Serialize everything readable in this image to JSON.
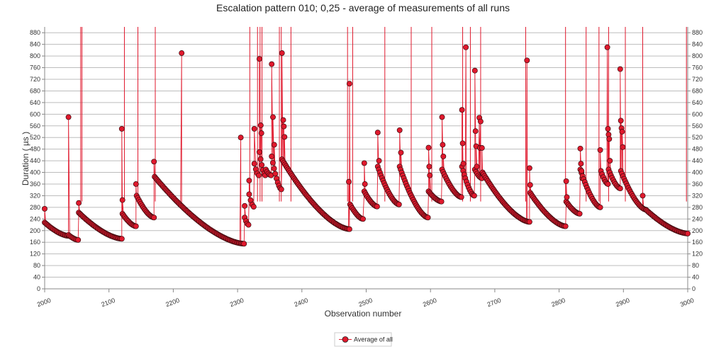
{
  "chart_data": {
    "type": "scatter",
    "title": "Escalation pattern 010; 0,25 - average of measurements of all runs",
    "xlabel": "Observation number",
    "ylabel": "Duration ( µs )",
    "xlim": [
      2000,
      3000
    ],
    "ylim": [
      0,
      900
    ],
    "x_ticks": [
      "2000",
      "2100",
      "2200",
      "2300",
      "2400",
      "2500",
      "2600",
      "2700",
      "2800",
      "2900",
      "3000"
    ],
    "y_ticks": [
      "0",
      "40",
      "80",
      "120",
      "160",
      "200",
      "240",
      "280",
      "320",
      "360",
      "400",
      "440",
      "480",
      "520",
      "560",
      "600",
      "640",
      "680",
      "720",
      "760",
      "800",
      "840",
      "880"
    ],
    "grid": true,
    "legend_position": "bottom-center",
    "series": [
      {
        "name": "Average of all",
        "color": "#e0192d",
        "marker": "circle",
        "segments": [
          {
            "x0": 2000,
            "x1": 2037,
            "y0": 228,
            "y1": 182
          },
          {
            "x0": 2037,
            "x1": 2052,
            "y0": 185,
            "y1": 168
          },
          {
            "x0": 2053,
            "x1": 2120,
            "y0": 262,
            "y1": 172
          },
          {
            "x0": 2121,
            "x1": 2142,
            "y0": 258,
            "y1": 215
          },
          {
            "x0": 2143,
            "x1": 2170,
            "y0": 320,
            "y1": 245
          },
          {
            "x0": 2171,
            "x1": 2310,
            "y0": 385,
            "y1": 155
          },
          {
            "x0": 2311,
            "x1": 2317,
            "y0": 245,
            "y1": 220
          },
          {
            "x0": 2318,
            "x1": 2325,
            "y0": 325,
            "y1": 282
          },
          {
            "x0": 2326,
            "x1": 2333,
            "y0": 430,
            "y1": 390
          },
          {
            "x0": 2334,
            "x1": 2343,
            "y0": 470,
            "y1": 390
          },
          {
            "x0": 2344,
            "x1": 2352,
            "y0": 410,
            "y1": 390
          },
          {
            "x0": 2353,
            "x1": 2368,
            "y0": 455,
            "y1": 342
          },
          {
            "x0": 2369,
            "x1": 2474,
            "y0": 445,
            "y1": 205
          },
          {
            "x0": 2475,
            "x1": 2495,
            "y0": 290,
            "y1": 240
          },
          {
            "x0": 2497,
            "x1": 2517,
            "y0": 335,
            "y1": 283
          },
          {
            "x0": 2518,
            "x1": 2551,
            "y0": 420,
            "y1": 290
          },
          {
            "x0": 2552,
            "x1": 2596,
            "y0": 420,
            "y1": 245
          },
          {
            "x0": 2597,
            "x1": 2617,
            "y0": 335,
            "y1": 300
          },
          {
            "x0": 2618,
            "x1": 2648,
            "y0": 410,
            "y1": 315
          },
          {
            "x0": 2649,
            "x1": 2668,
            "y0": 420,
            "y1": 320
          },
          {
            "x0": 2669,
            "x1": 2680,
            "y0": 410,
            "y1": 380
          },
          {
            "x0": 2681,
            "x1": 2754,
            "y0": 400,
            "y1": 230
          },
          {
            "x0": 2755,
            "x1": 2810,
            "y0": 330,
            "y1": 215
          },
          {
            "x0": 2811,
            "x1": 2832,
            "y0": 300,
            "y1": 258
          },
          {
            "x0": 2833,
            "x1": 2864,
            "y0": 410,
            "y1": 280
          },
          {
            "x0": 2865,
            "x1": 2876,
            "y0": 405,
            "y1": 360
          },
          {
            "x0": 2877,
            "x1": 2895,
            "y0": 410,
            "y1": 345
          },
          {
            "x0": 2896,
            "x1": 2935,
            "y0": 405,
            "y1": 272
          },
          {
            "x0": 2936,
            "x1": 3000,
            "y0": 270,
            "y1": 190
          }
        ],
        "peaks": [
          {
            "x": 2000,
            "y": 275
          },
          {
            "x": 2037,
            "y": 590
          },
          {
            "x": 2053,
            "y": 295
          },
          {
            "x": 2120,
            "y": 550
          },
          {
            "x": 2121,
            "y": 305
          },
          {
            "x": 2142,
            "y": 360
          },
          {
            "x": 2170,
            "y": 437
          },
          {
            "x": 2213,
            "y": 810
          },
          {
            "x": 2305,
            "y": 520
          },
          {
            "x": 2311,
            "y": 285
          },
          {
            "x": 2318,
            "y": 372
          },
          {
            "x": 2326,
            "y": 550
          },
          {
            "x": 2334,
            "y": 790
          },
          {
            "x": 2336,
            "y": 562
          },
          {
            "x": 2337,
            "y": 535
          },
          {
            "x": 2353,
            "y": 772
          },
          {
            "x": 2355,
            "y": 590
          },
          {
            "x": 2357,
            "y": 495
          },
          {
            "x": 2369,
            "y": 810
          },
          {
            "x": 2371,
            "y": 580
          },
          {
            "x": 2372,
            "y": 558
          },
          {
            "x": 2373,
            "y": 522
          },
          {
            "x": 2474,
            "y": 705
          },
          {
            "x": 2473,
            "y": 368
          },
          {
            "x": 2497,
            "y": 432
          },
          {
            "x": 2498,
            "y": 360
          },
          {
            "x": 2518,
            "y": 537
          },
          {
            "x": 2520,
            "y": 440
          },
          {
            "x": 2552,
            "y": 545
          },
          {
            "x": 2554,
            "y": 468
          },
          {
            "x": 2597,
            "y": 485
          },
          {
            "x": 2598,
            "y": 420
          },
          {
            "x": 2599,
            "y": 390
          },
          {
            "x": 2618,
            "y": 590
          },
          {
            "x": 2619,
            "y": 495
          },
          {
            "x": 2620,
            "y": 455
          },
          {
            "x": 2649,
            "y": 615
          },
          {
            "x": 2650,
            "y": 500
          },
          {
            "x": 2651,
            "y": 430
          },
          {
            "x": 2655,
            "y": 830
          },
          {
            "x": 2669,
            "y": 750
          },
          {
            "x": 2670,
            "y": 542
          },
          {
            "x": 2671,
            "y": 490
          },
          {
            "x": 2672,
            "y": 420
          },
          {
            "x": 2676,
            "y": 588
          },
          {
            "x": 2678,
            "y": 575
          },
          {
            "x": 2677,
            "y": 484
          },
          {
            "x": 2680,
            "y": 484
          },
          {
            "x": 2750,
            "y": 785
          },
          {
            "x": 2754,
            "y": 415
          },
          {
            "x": 2755,
            "y": 357
          },
          {
            "x": 2811,
            "y": 370
          },
          {
            "x": 2812,
            "y": 315
          },
          {
            "x": 2833,
            "y": 482
          },
          {
            "x": 2834,
            "y": 430
          },
          {
            "x": 2835,
            "y": 405
          },
          {
            "x": 2836,
            "y": 380
          },
          {
            "x": 2864,
            "y": 477
          },
          {
            "x": 2875,
            "y": 830
          },
          {
            "x": 2876,
            "y": 550
          },
          {
            "x": 2877,
            "y": 530
          },
          {
            "x": 2878,
            "y": 515
          },
          {
            "x": 2879,
            "y": 440
          },
          {
            "x": 2895,
            "y": 755
          },
          {
            "x": 2896,
            "y": 578
          },
          {
            "x": 2897,
            "y": 552
          },
          {
            "x": 2898,
            "y": 540
          },
          {
            "x": 2899,
            "y": 487
          },
          {
            "x": 2930,
            "y": 320
          }
        ],
        "offscale_x": [
          2056,
          2058,
          2124,
          2145,
          2172,
          2319,
          2331,
          2335,
          2338,
          2365,
          2368,
          2383,
          2471,
          2479,
          2529,
          2570,
          2602,
          2650,
          2662,
          2678,
          2748,
          2810,
          2842,
          2862,
          2877,
          2903,
          2930,
          2998
        ]
      }
    ]
  }
}
